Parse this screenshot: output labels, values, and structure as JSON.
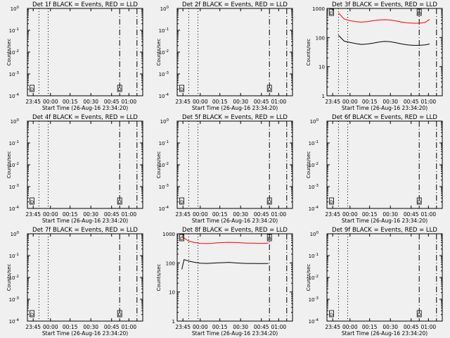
{
  "colors": {
    "background": "#f0f0f0",
    "axes": "#000000",
    "events": "#000000",
    "lld": "#ff0000"
  },
  "chart_data": [
    {
      "type": "line",
      "title": "Det 1f BLACK = Events, RED = LLD",
      "ylabel": "Counts/sec",
      "xlabel": "Start Time (26-Aug-16 23:34:20)",
      "x_tick_labels": [
        "23:45",
        "00:00",
        "00:15",
        "00:30",
        "00:45",
        "01:00"
      ],
      "y_scale": "log",
      "y_tick_labels": [
        "10^-4",
        "10^-3",
        "10^-2",
        "10^-1",
        "10^0"
      ],
      "ylim": [
        0.0001,
        1
      ],
      "markers": [
        "D",
        "D"
      ],
      "series": []
    },
    {
      "type": "line",
      "title": "Det 2f BLACK = Events, RED = LLD",
      "ylabel": "Counts/sec",
      "xlabel": "Start Time (26-Aug-16 23:34:20)",
      "x_tick_labels": [
        "23:45",
        "00:00",
        "00:15",
        "00:30",
        "00:45",
        "01:00"
      ],
      "y_scale": "log",
      "y_tick_labels": [
        "10^-4",
        "10^-3",
        "10^-2",
        "10^-1",
        "10^0"
      ],
      "ylim": [
        0.0001,
        1
      ],
      "markers": [
        "D",
        "D"
      ],
      "series": []
    },
    {
      "type": "line",
      "title": "Det 3f BLACK = Events, RED = LLD",
      "ylabel": "Counts/sec",
      "xlabel": "Start Time (26-Aug-16 23:34:20)",
      "x_tick_labels": [
        "23:45",
        "00:00",
        "00:15",
        "00:30",
        "00:45",
        "01:00"
      ],
      "y_scale": "log",
      "y_tick_labels": [
        "1",
        "10",
        "100",
        "1000"
      ],
      "ylim": [
        1,
        1000
      ],
      "markers": [
        "D",
        "D"
      ],
      "series": [
        {
          "color": "#ff0000",
          "x": [
            0.1,
            0.15,
            0.2,
            0.25,
            0.3,
            0.35,
            0.4,
            0.45,
            0.5,
            0.55,
            0.6,
            0.65,
            0.7,
            0.75,
            0.8,
            0.85,
            0.89
          ],
          "y": [
            700,
            430,
            380,
            350,
            340,
            350,
            380,
            400,
            410,
            400,
            370,
            340,
            320,
            310,
            310,
            330,
            420
          ]
        },
        {
          "color": "#000000",
          "x": [
            0.1,
            0.15,
            0.2,
            0.25,
            0.3,
            0.35,
            0.4,
            0.45,
            0.5,
            0.55,
            0.6,
            0.65,
            0.7,
            0.75,
            0.8,
            0.85,
            0.89
          ],
          "y": [
            120,
            75,
            68,
            62,
            58,
            60,
            64,
            70,
            74,
            72,
            66,
            60,
            56,
            54,
            54,
            56,
            60
          ]
        }
      ]
    },
    {
      "type": "line",
      "title": "Det 4f BLACK = Events, RED = LLD",
      "ylabel": "Counts/sec",
      "xlabel": "Start Time (26-Aug-16 23:34:20)",
      "x_tick_labels": [
        "23:45",
        "00:00",
        "00:15",
        "00:30",
        "00:45",
        "01:00"
      ],
      "y_scale": "log",
      "y_tick_labels": [
        "10^-4",
        "10^-3",
        "10^-2",
        "10^-1",
        "10^0"
      ],
      "ylim": [
        0.0001,
        1
      ],
      "markers": [
        "D",
        "D"
      ],
      "series": []
    },
    {
      "type": "line",
      "title": "Det 5f BLACK = Events, RED = LLD",
      "ylabel": "Counts/sec",
      "xlabel": "Start Time (26-Aug-16 23:34:20)",
      "x_tick_labels": [
        "23:45",
        "00:00",
        "00:15",
        "00:30",
        "00:45",
        "01:00"
      ],
      "y_scale": "log",
      "y_tick_labels": [
        "10^-4",
        "10^-3",
        "10^-2",
        "10^-1",
        "10^0"
      ],
      "ylim": [
        0.0001,
        1
      ],
      "markers": [
        "D",
        "D"
      ],
      "series": []
    },
    {
      "type": "line",
      "title": "Det 6f BLACK = Events, RED = LLD",
      "ylabel": "Counts/sec",
      "xlabel": "Start Time (26-Aug-16 23:34:20)",
      "x_tick_labels": [
        "23:45",
        "00:00",
        "00:15",
        "00:30",
        "00:45",
        "01:00"
      ],
      "y_scale": "log",
      "y_tick_labels": [
        "10^-4",
        "10^-3",
        "10^-2",
        "10^-1",
        "10^0"
      ],
      "ylim": [
        0.0001,
        1
      ],
      "markers": [
        "D",
        "D"
      ],
      "series": []
    },
    {
      "type": "line",
      "title": "Det 7f BLACK = Events, RED = LLD",
      "ylabel": "Counts/sec",
      "xlabel": "Start Time (26-Aug-16 23:34:20)",
      "x_tick_labels": [
        "23:45",
        "00:00",
        "00:15",
        "00:30",
        "00:45",
        "01:00"
      ],
      "y_scale": "log",
      "y_tick_labels": [
        "10^-4",
        "10^-3",
        "10^-2",
        "10^-1",
        "10^0"
      ],
      "ylim": [
        0.0001,
        1
      ],
      "markers": [
        "D",
        "D"
      ],
      "series": []
    },
    {
      "type": "line",
      "title": "Det 8f BLACK = Events, RED = LLD",
      "ylabel": "Counts/sec",
      "xlabel": "Start Time (26-Aug-16 23:34:20)",
      "x_tick_labels": [
        "23:45",
        "00:00",
        "00:15",
        "00:30",
        "00:45",
        "01:00"
      ],
      "y_scale": "log",
      "y_tick_labels": [
        "1",
        "10",
        "100",
        "1000"
      ],
      "ylim": [
        1,
        1000
      ],
      "markers": [
        "D",
        "D"
      ],
      "series": [
        {
          "color": "#ff0000",
          "x": [
            0.04,
            0.1,
            0.15,
            0.2,
            0.25,
            0.3,
            0.35,
            0.4,
            0.45,
            0.5,
            0.55,
            0.6,
            0.65,
            0.7,
            0.75,
            0.79
          ],
          "y": [
            800,
            560,
            500,
            470,
            460,
            470,
            490,
            500,
            510,
            500,
            490,
            480,
            480,
            470,
            470,
            480
          ]
        },
        {
          "color": "#000000",
          "x": [
            0.04,
            0.06,
            0.1,
            0.15,
            0.2,
            0.25,
            0.3,
            0.35,
            0.4,
            0.45,
            0.5,
            0.55,
            0.6,
            0.65,
            0.7,
            0.75,
            0.79
          ],
          "y": [
            60,
            130,
            115,
            105,
            98,
            96,
            98,
            100,
            102,
            104,
            100,
            98,
            96,
            96,
            95,
            95,
            96
          ]
        }
      ]
    },
    {
      "type": "line",
      "title": "Det 9f BLACK = Events, RED = LLD",
      "ylabel": "Counts/sec",
      "xlabel": "Start Time (26-Aug-16 23:34:20)",
      "x_tick_labels": [
        "23:45",
        "00:00",
        "00:15",
        "00:30",
        "00:45",
        "01:00"
      ],
      "y_scale": "log",
      "y_tick_labels": [
        "10^-4",
        "10^-3",
        "10^-2",
        "10^-1",
        "10^0"
      ],
      "ylim": [
        0.0001,
        1
      ],
      "markers": [
        "D",
        "D"
      ],
      "series": []
    }
  ]
}
